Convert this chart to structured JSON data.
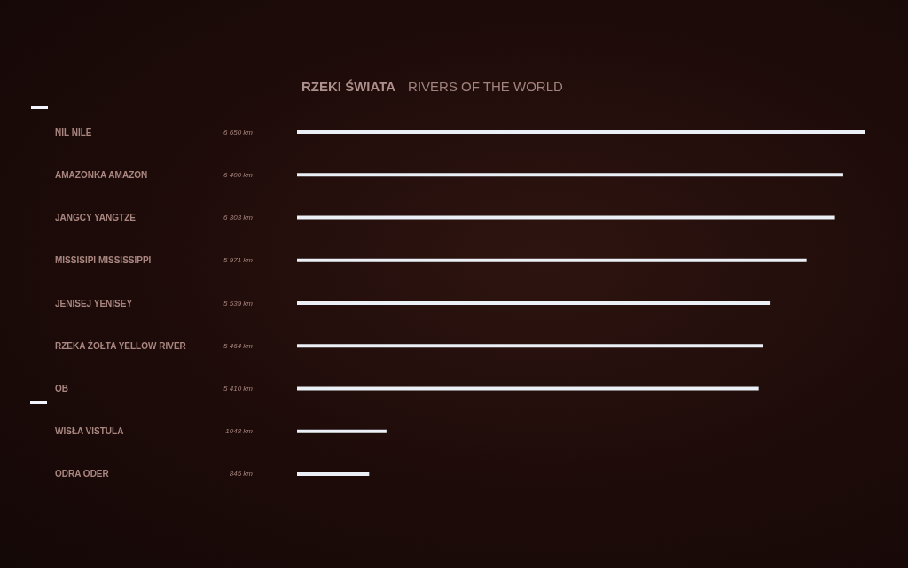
{
  "chart_data": {
    "type": "bar",
    "orientation": "horizontal",
    "title": "RZEKI ŚWIATA",
    "subtitle": "RIVERS OF THE WORLD",
    "categories": [
      "NIL NILE",
      "AMAZONKA AMAZON",
      "JANGCY YANGTZE",
      "MISSISIPI MISSISSIPPI",
      "JENISEJ YENISEY",
      "RZEKA ŻOŁTA YELLOW RIVER",
      "OB",
      "WISŁA VISTULA",
      "ODRA ODER"
    ],
    "values": [
      6650,
      6400,
      6303,
      5971,
      5539,
      5464,
      5410,
      1048,
      845
    ],
    "value_labels": [
      "6 650 km",
      "6 400 km",
      "6 303 km",
      "5 971 km",
      "5 539 km",
      "5 464 km",
      "5 410 km",
      "1048 km",
      "845 km"
    ],
    "color": "#eaf0f5"
  }
}
